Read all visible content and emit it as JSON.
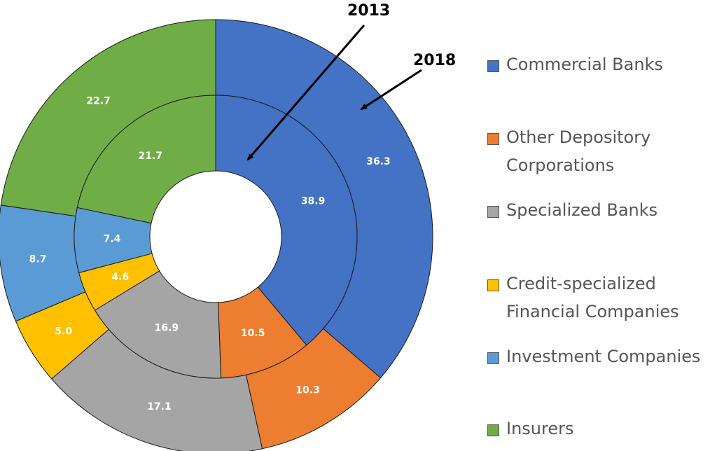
{
  "chart_data": {
    "type": "pie",
    "variant": "nested-donut",
    "categories": [
      "Commercial Banks",
      "Other Depository Corporations",
      "Specialized Banks",
      "Credit-specialized Financial Companies",
      "Investment Companies",
      "Insurers"
    ],
    "legend_lines": [
      "Commercial Banks",
      "Other Depository\nCorporations",
      "Specialized Banks",
      "Credit-specialized\nFinancial Companies",
      "Investment Companies",
      "Insurers"
    ],
    "colors": [
      "#4472c4",
      "#ed7d31",
      "#a5a5a5",
      "#ffc000",
      "#5b9bd5",
      "#70ad47"
    ],
    "series": [
      {
        "name": "2013",
        "ring": "inner",
        "values": [
          38.9,
          10.5,
          16.9,
          4.6,
          7.4,
          21.7
        ],
        "labels": [
          "38.9",
          "10.5",
          "16.9",
          "4.6",
          "7.4",
          "21.7"
        ]
      },
      {
        "name": "2018",
        "ring": "outer",
        "values": [
          36.3,
          10.3,
          17.1,
          5.0,
          8.7,
          22.7
        ],
        "labels": [
          "36.3",
          "10.3",
          "17.1",
          "5.0",
          "8.7",
          "22.7"
        ]
      }
    ],
    "legend_position": "right"
  }
}
